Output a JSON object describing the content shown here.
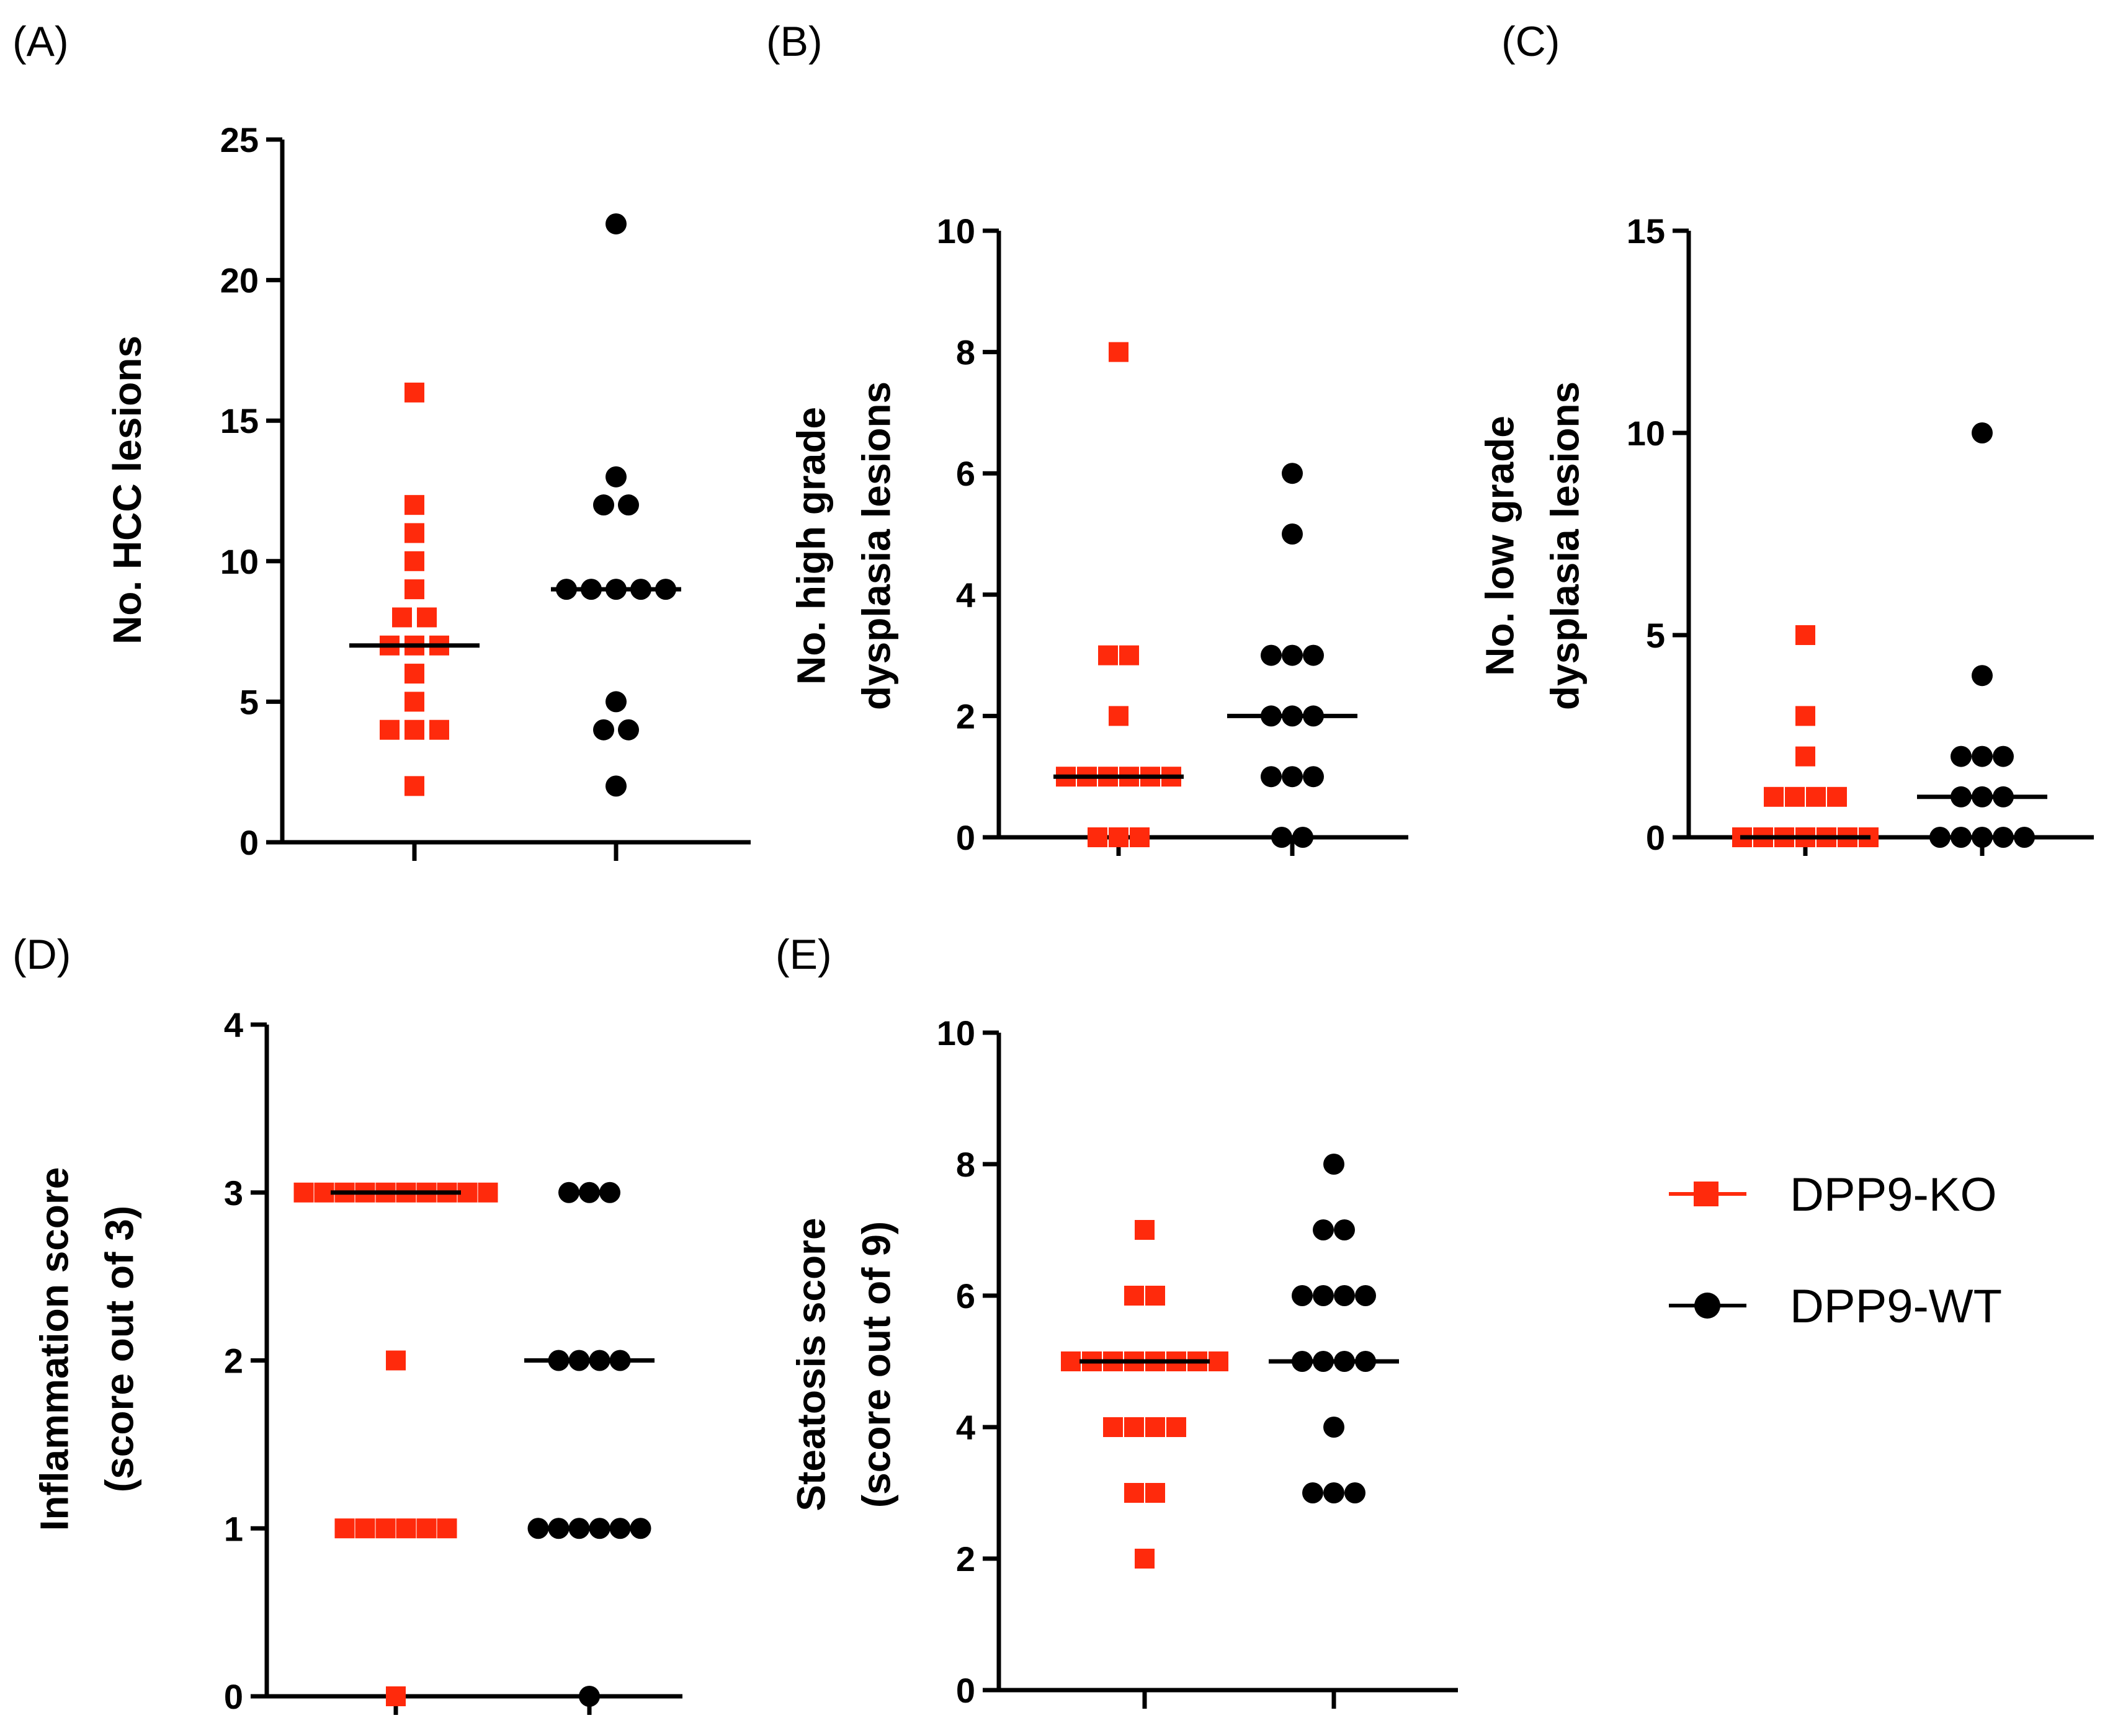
{
  "colors": {
    "ko": "#ff2a0c",
    "wt": "#000000",
    "axis": "#000000"
  },
  "legend": {
    "items": [
      {
        "label": "DPP9-KO",
        "marker": "square",
        "color": "#ff2a0c"
      },
      {
        "label": "DPP9-WT",
        "marker": "circle",
        "color": "#000000"
      }
    ]
  },
  "chart_data": [
    {
      "panel": "(A)",
      "type": "scatter",
      "ylabel": [
        "No. HCC lesions"
      ],
      "ylim": [
        0,
        25
      ],
      "yticks": [
        0,
        5,
        10,
        15,
        20,
        25
      ],
      "series": [
        {
          "name": "DPP9-KO",
          "marker": "square",
          "median": 7,
          "values": [
            2,
            4,
            4,
            4,
            5,
            6,
            7,
            7,
            7,
            8,
            8,
            9,
            10,
            11,
            12,
            16
          ]
        },
        {
          "name": "DPP9-WT",
          "marker": "circle",
          "median": 9,
          "values": [
            2,
            4,
            4,
            5,
            9,
            9,
            9,
            9,
            9,
            12,
            12,
            13,
            22
          ]
        }
      ]
    },
    {
      "panel": "(B)",
      "type": "scatter",
      "ylabel": [
        "No. high grade",
        "dysplasia lesions"
      ],
      "ylim": [
        0,
        10
      ],
      "yticks": [
        0,
        2,
        4,
        6,
        8,
        10
      ],
      "series": [
        {
          "name": "DPP9-KO",
          "marker": "square",
          "median": 1,
          "values": [
            0,
            0,
            0,
            1,
            1,
            1,
            1,
            1,
            1,
            2,
            3,
            3,
            8
          ]
        },
        {
          "name": "DPP9-WT",
          "marker": "circle",
          "median": 2,
          "values": [
            0,
            0,
            1,
            1,
            1,
            2,
            2,
            2,
            3,
            3,
            3,
            5,
            6
          ]
        }
      ]
    },
    {
      "panel": "(C)",
      "type": "scatter",
      "ylabel": [
        "No. low grade",
        "dysplasia lesions"
      ],
      "ylim": [
        0,
        15
      ],
      "yticks": [
        0,
        5,
        10,
        15
      ],
      "series": [
        {
          "name": "DPP9-KO",
          "marker": "square",
          "median": 0,
          "values": [
            0,
            0,
            0,
            0,
            0,
            0,
            0,
            1,
            1,
            1,
            1,
            2,
            3,
            5
          ]
        },
        {
          "name": "DPP9-WT",
          "marker": "circle",
          "median": 1,
          "values": [
            0,
            0,
            0,
            0,
            0,
            1,
            1,
            1,
            2,
            2,
            2,
            4,
            10
          ]
        }
      ]
    },
    {
      "panel": "(D)",
      "type": "scatter",
      "ylabel": [
        "Inflammation score",
        "(score out of 3)"
      ],
      "ylim": [
        0,
        4
      ],
      "yticks": [
        0,
        1,
        2,
        3,
        4
      ],
      "series": [
        {
          "name": "DPP9-KO",
          "marker": "square",
          "median": 3,
          "values": [
            0,
            1,
            1,
            1,
            1,
            1,
            1,
            2,
            3,
            3,
            3,
            3,
            3,
            3,
            3,
            3,
            3,
            3
          ]
        },
        {
          "name": "DPP9-WT",
          "marker": "circle",
          "median": 2,
          "values": [
            0,
            1,
            1,
            1,
            1,
            1,
            1,
            2,
            2,
            2,
            2,
            3,
            3,
            3
          ]
        }
      ]
    },
    {
      "panel": "(E)",
      "type": "scatter",
      "ylabel": [
        "Steatosis score",
        "(score out of 9)"
      ],
      "ylim": [
        0,
        10
      ],
      "yticks": [
        0,
        2,
        4,
        6,
        8,
        10
      ],
      "series": [
        {
          "name": "DPP9-KO",
          "marker": "square",
          "median": 5,
          "values": [
            2,
            3,
            3,
            4,
            4,
            4,
            4,
            5,
            5,
            5,
            5,
            5,
            5,
            5,
            5,
            6,
            6,
            7
          ]
        },
        {
          "name": "DPP9-WT",
          "marker": "circle",
          "median": 5,
          "values": [
            3,
            3,
            3,
            4,
            5,
            5,
            5,
            5,
            6,
            6,
            6,
            6,
            7,
            7,
            8
          ]
        }
      ]
    }
  ]
}
